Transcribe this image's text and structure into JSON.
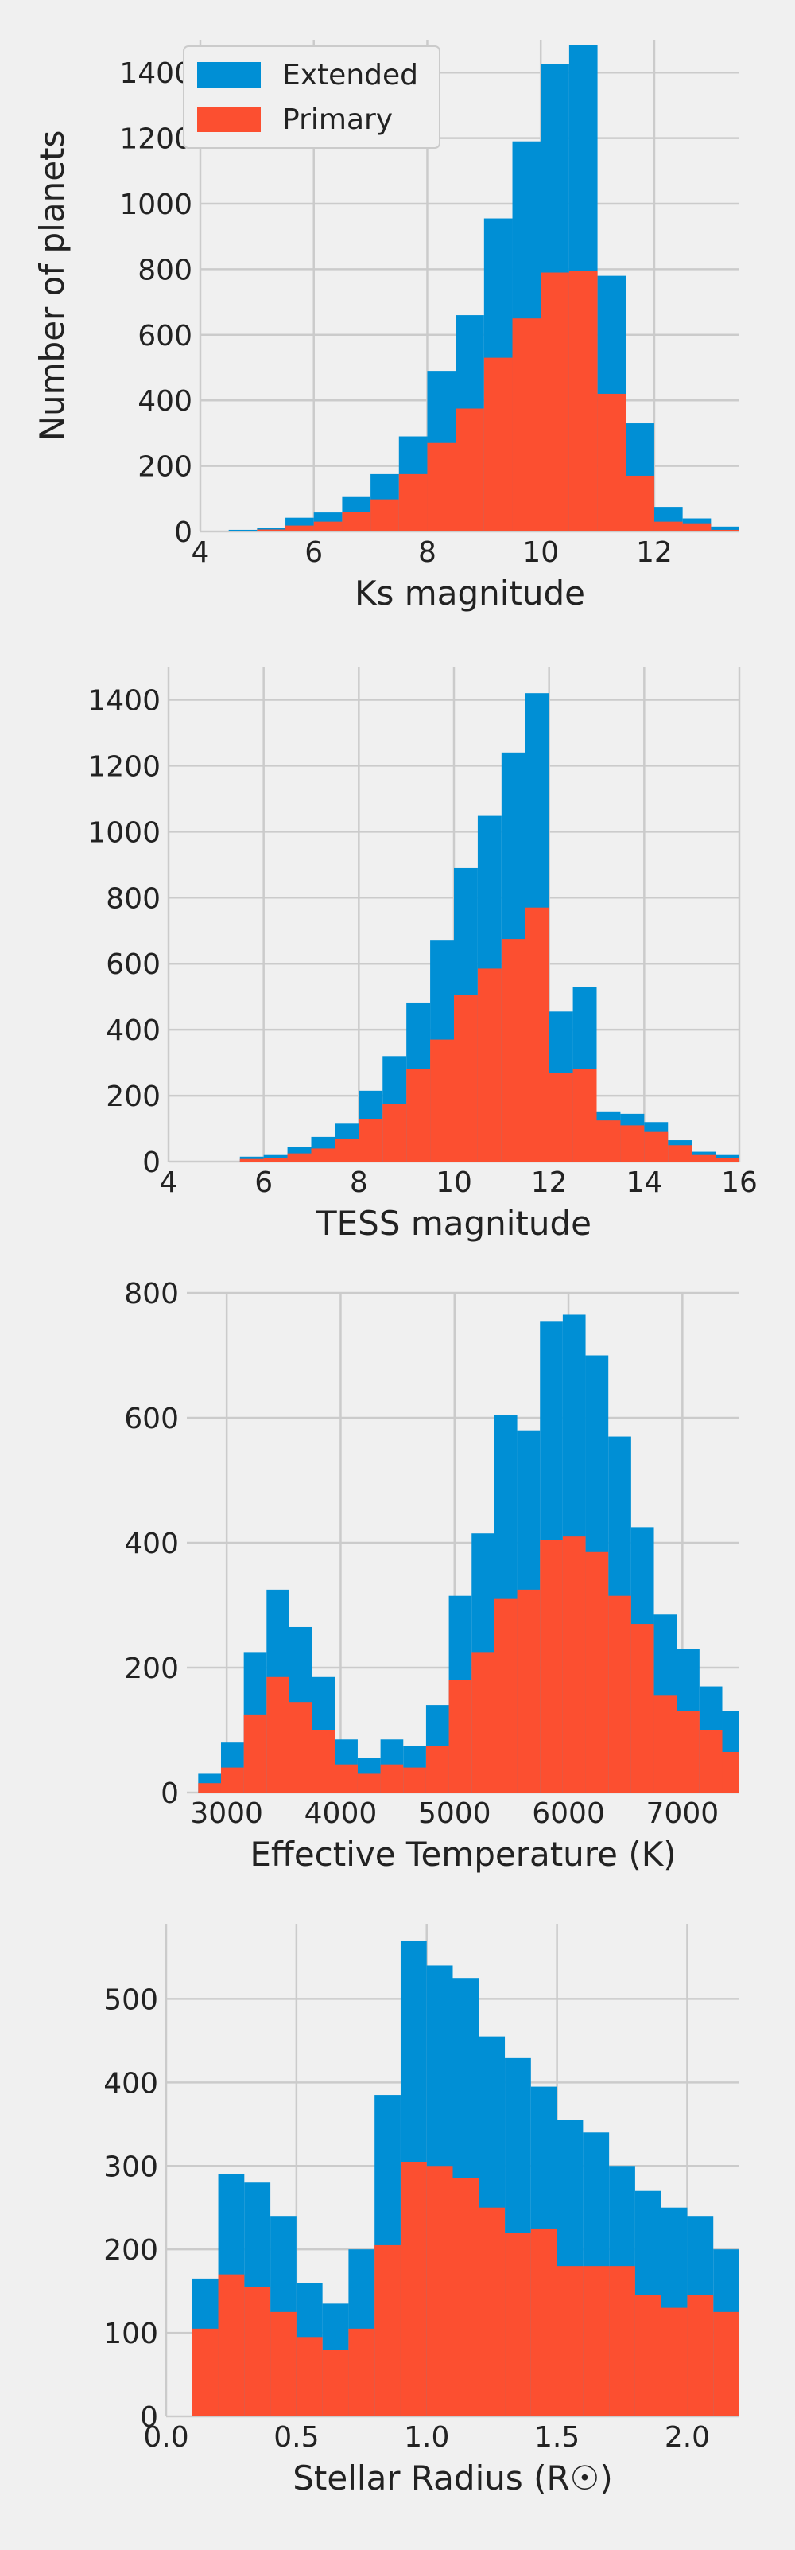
{
  "colors": {
    "background": "#f0f0f0",
    "grid": "#cbcbcb",
    "extended": "#008fd5",
    "primary": "#fc4f30",
    "text": "#222222"
  },
  "legend": {
    "placement": "top-left",
    "entries": [
      {
        "label": "Extended",
        "color": "#008fd5"
      },
      {
        "label": "Primary",
        "color": "#fc4f30"
      }
    ]
  },
  "chart_data": [
    {
      "type": "bar",
      "xlabel": "Ks magnitude",
      "ylabel": "Number of planets",
      "xlim": [
        4,
        13.5
      ],
      "ylim": [
        0,
        1500
      ],
      "xticks": [
        4,
        6,
        8,
        10,
        12
      ],
      "yticks": [
        0,
        200,
        400,
        600,
        800,
        1000,
        1200,
        1400
      ],
      "grid": true,
      "bin_edges": [
        4.5,
        5.0,
        5.5,
        6.0,
        6.5,
        7.0,
        7.5,
        8.0,
        8.5,
        9.0,
        9.5,
        10.0,
        10.5,
        11.0,
        11.5,
        12.0,
        12.5,
        13.0,
        13.5
      ],
      "series": [
        {
          "name": "Extended",
          "values": [
            5,
            12,
            42,
            58,
            105,
            175,
            290,
            490,
            660,
            955,
            1190,
            1425,
            1485,
            780,
            330,
            75,
            40,
            15
          ]
        },
        {
          "name": "Primary",
          "values": [
            2,
            6,
            18,
            30,
            60,
            98,
            175,
            270,
            375,
            530,
            650,
            790,
            795,
            420,
            170,
            30,
            25,
            5
          ]
        }
      ]
    },
    {
      "type": "bar",
      "xlabel": "TESS magnitude",
      "ylabel": "",
      "xlim": [
        4,
        16
      ],
      "ylim": [
        0,
        1500
      ],
      "xticks": [
        4,
        6,
        8,
        10,
        12,
        14,
        16
      ],
      "yticks": [
        0,
        200,
        400,
        600,
        800,
        1000,
        1200,
        1400
      ],
      "grid": true,
      "bin_edges": [
        5.5,
        6.0,
        6.5,
        7.0,
        7.5,
        8.0,
        8.5,
        9.0,
        9.5,
        10.0,
        10.5,
        11.0,
        11.5,
        12.0,
        12.5,
        13.0,
        13.5,
        14.0,
        14.5,
        15.0,
        15.5,
        16.0
      ],
      "series": [
        {
          "name": "Extended",
          "values": [
            15,
            20,
            45,
            75,
            115,
            215,
            320,
            480,
            670,
            890,
            1050,
            1240,
            1420,
            455,
            530,
            150,
            145,
            120,
            65,
            30,
            20
          ]
        },
        {
          "name": "Primary",
          "values": [
            8,
            10,
            25,
            40,
            70,
            130,
            175,
            280,
            370,
            505,
            585,
            675,
            770,
            270,
            280,
            125,
            110,
            90,
            50,
            20,
            10
          ]
        }
      ]
    },
    {
      "type": "bar",
      "xlabel": "Effective Temperature (K)",
      "ylabel": "",
      "xlim": [
        2650,
        7500
      ],
      "ylim": [
        0,
        800
      ],
      "xticks": [
        3000,
        4000,
        5000,
        6000,
        7000
      ],
      "yticks": [
        0,
        200,
        400,
        600,
        800
      ],
      "grid": true,
      "bin_edges": [
        2750,
        2950,
        3150,
        3350,
        3550,
        3750,
        3950,
        4150,
        4350,
        4550,
        4750,
        4950,
        5150,
        5350,
        5550,
        5750,
        5950,
        6150,
        6350,
        6550,
        6750,
        6950,
        7150,
        7350,
        7500
      ],
      "series": [
        {
          "name": "Extended",
          "values": [
            30,
            80,
            225,
            325,
            265,
            185,
            85,
            55,
            85,
            75,
            140,
            315,
            415,
            605,
            580,
            755,
            765,
            700,
            570,
            425,
            285,
            230,
            170,
            130
          ]
        },
        {
          "name": "Primary",
          "values": [
            15,
            40,
            125,
            185,
            145,
            100,
            45,
            30,
            45,
            40,
            75,
            180,
            225,
            310,
            325,
            405,
            410,
            385,
            315,
            270,
            155,
            130,
            100,
            65
          ]
        }
      ]
    },
    {
      "type": "bar",
      "xlabel": "Stellar Radius (R☉)",
      "ylabel": "",
      "xlim": [
        0,
        2.2
      ],
      "ylim": [
        0,
        590
      ],
      "xticks": [
        0.0,
        0.5,
        1.0,
        1.5,
        2.0
      ],
      "xtick_labels": [
        "0.0",
        "0.5",
        "1.0",
        "1.5",
        "2.0"
      ],
      "yticks": [
        0,
        100,
        200,
        300,
        400,
        500
      ],
      "grid": true,
      "bin_edges": [
        0.1,
        0.2,
        0.3,
        0.4,
        0.5,
        0.6,
        0.7,
        0.8,
        0.9,
        1.0,
        1.1,
        1.2,
        1.3,
        1.4,
        1.5,
        1.6,
        1.7,
        1.8,
        1.9,
        2.0,
        2.1,
        2.2
      ],
      "series": [
        {
          "name": "Extended",
          "values": [
            165,
            290,
            280,
            240,
            160,
            135,
            200,
            385,
            570,
            540,
            525,
            455,
            430,
            395,
            355,
            340,
            300,
            270,
            250,
            240,
            200
          ]
        },
        {
          "name": "Primary",
          "values": [
            105,
            170,
            155,
            125,
            95,
            80,
            105,
            205,
            305,
            300,
            285,
            250,
            220,
            225,
            180,
            180,
            180,
            145,
            130,
            145,
            125
          ]
        }
      ]
    }
  ]
}
